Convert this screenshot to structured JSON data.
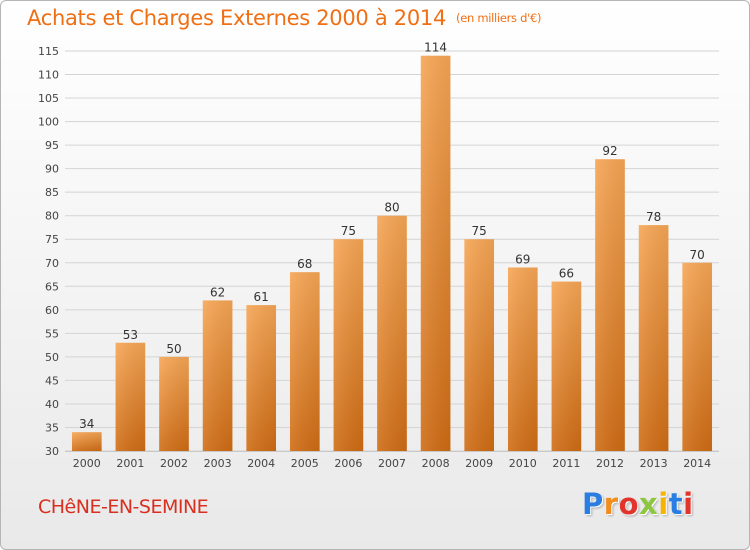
{
  "header": {
    "title": "Achats et Charges Externes 2000 à 2014",
    "unit": "(en milliers d'€)"
  },
  "footer": {
    "commune": "CHêNE-EN-SEMINE",
    "logo_text": "Proxiti",
    "logo_colors": [
      "#2a7de1",
      "#f28c1a",
      "#e2342a",
      "#8dc63f",
      "#f6b400",
      "#2a7de1",
      "#e2342a"
    ]
  },
  "colors": {
    "title": "#ef6f15",
    "bar_top": "#f6a655",
    "bar_bottom": "#cf6c14",
    "commune": "#d83020"
  },
  "chart_data": {
    "type": "bar",
    "categories": [
      "2000",
      "2001",
      "2002",
      "2003",
      "2004",
      "2005",
      "2006",
      "2007",
      "2008",
      "2009",
      "2010",
      "2011",
      "2012",
      "2013",
      "2014"
    ],
    "values": [
      34,
      53,
      50,
      62,
      61,
      68,
      75,
      80,
      114,
      75,
      69,
      66,
      92,
      78,
      70
    ],
    "title": "Achats et Charges Externes 2000 à 2014",
    "xlabel": "",
    "ylabel": "",
    "ylim": [
      30,
      115
    ],
    "yticks": [
      30,
      35,
      40,
      45,
      50,
      55,
      60,
      65,
      70,
      75,
      80,
      85,
      90,
      95,
      100,
      105,
      110,
      115
    ],
    "grid": "horizontal",
    "legend": "none",
    "data_labels": true
  }
}
